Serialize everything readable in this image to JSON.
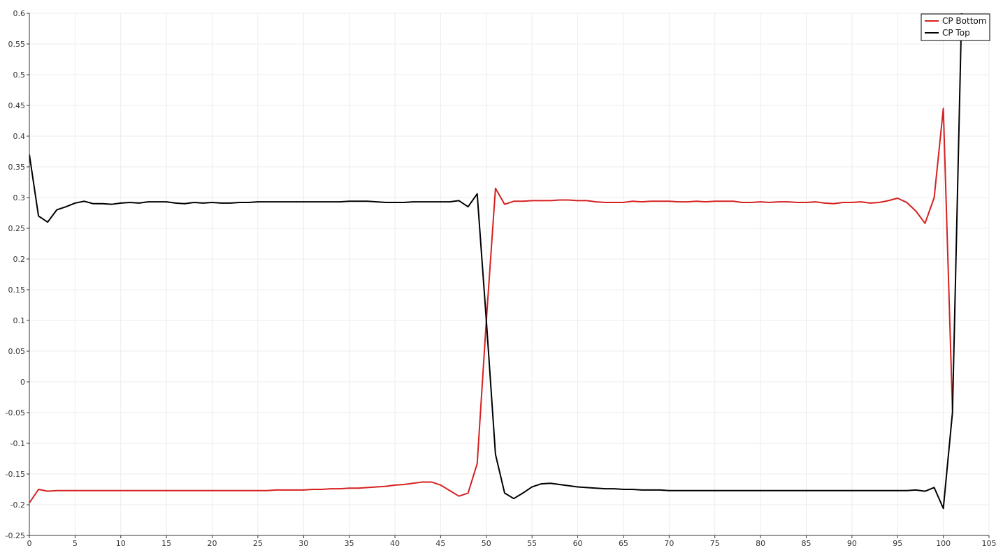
{
  "chart_data": {
    "type": "line",
    "title": "",
    "xlabel": "",
    "ylabel": "",
    "xlim": [
      0,
      105
    ],
    "ylim": [
      -0.25,
      0.6
    ],
    "xticks": [
      0,
      5,
      10,
      15,
      20,
      25,
      30,
      35,
      40,
      45,
      50,
      55,
      60,
      65,
      70,
      75,
      80,
      85,
      90,
      95,
      100,
      105
    ],
    "yticks": [
      -0.25,
      -0.2,
      -0.15,
      -0.1,
      -0.05,
      0,
      0.05,
      0.1,
      0.15,
      0.2,
      0.25,
      0.3,
      0.35,
      0.4,
      0.45,
      0.5,
      0.55,
      0.6
    ],
    "xtick_labels": [
      "0",
      "5",
      "10",
      "15",
      "20",
      "25",
      "30",
      "35",
      "40",
      "45",
      "50",
      "55",
      "60",
      "65",
      "70",
      "75",
      "80",
      "85",
      "90",
      "95",
      "100",
      "105"
    ],
    "ytick_labels": [
      "-0.25",
      "-0.2",
      "-0.15",
      "-0.1",
      "-0.05",
      "0",
      "0.05",
      "0.1",
      "0.15",
      "0.2",
      "0.25",
      "0.3",
      "0.35",
      "0.4",
      "0.45",
      "0.5",
      "0.55",
      "0.6"
    ],
    "grid": true,
    "legend": "top-right",
    "series": [
      {
        "name": "CP Bottom",
        "color": "#d62020",
        "x": [
          0,
          1,
          2,
          3,
          4,
          5,
          6,
          7,
          8,
          9,
          10,
          11,
          12,
          13,
          14,
          15,
          16,
          17,
          18,
          19,
          20,
          21,
          22,
          23,
          24,
          25,
          26,
          27,
          28,
          29,
          30,
          31,
          32,
          33,
          34,
          35,
          36,
          37,
          38,
          39,
          40,
          41,
          42,
          43,
          44,
          45,
          46,
          47,
          48,
          49,
          50,
          51,
          52,
          53,
          54,
          55,
          56,
          57,
          58,
          59,
          60,
          61,
          62,
          63,
          64,
          65,
          66,
          67,
          68,
          69,
          70,
          71,
          72,
          73,
          74,
          75,
          76,
          77,
          78,
          79,
          80,
          81,
          82,
          83,
          84,
          85,
          86,
          87,
          88,
          89,
          90,
          91,
          92,
          93,
          94,
          95,
          96,
          97,
          98,
          99,
          100,
          101
        ],
        "y": [
          -0.197,
          -0.175,
          -0.178,
          -0.177,
          -0.177,
          -0.177,
          -0.177,
          -0.177,
          -0.177,
          -0.177,
          -0.177,
          -0.177,
          -0.177,
          -0.177,
          -0.177,
          -0.177,
          -0.177,
          -0.177,
          -0.177,
          -0.177,
          -0.177,
          -0.177,
          -0.177,
          -0.177,
          -0.177,
          -0.177,
          -0.177,
          -0.176,
          -0.176,
          -0.176,
          -0.176,
          -0.175,
          -0.175,
          -0.174,
          -0.174,
          -0.173,
          -0.173,
          -0.172,
          -0.171,
          -0.17,
          -0.168,
          -0.167,
          -0.165,
          -0.163,
          -0.163,
          -0.168,
          -0.177,
          -0.186,
          -0.181,
          -0.133,
          0.1,
          0.315,
          0.289,
          0.294,
          0.294,
          0.295,
          0.295,
          0.295,
          0.296,
          0.296,
          0.295,
          0.295,
          0.293,
          0.292,
          0.292,
          0.292,
          0.294,
          0.293,
          0.294,
          0.294,
          0.294,
          0.293,
          0.293,
          0.294,
          0.293,
          0.294,
          0.294,
          0.294,
          0.292,
          0.292,
          0.293,
          0.292,
          0.293,
          0.293,
          0.292,
          0.292,
          0.293,
          0.291,
          0.29,
          0.292,
          0.292,
          0.293,
          0.291,
          0.292,
          0.295,
          0.299,
          0.292,
          0.278,
          0.258,
          0.3,
          0.445,
          -0.045
        ]
      },
      {
        "name": "CP Top",
        "color": "#000000",
        "x": [
          0,
          1,
          2,
          3,
          4,
          5,
          6,
          7,
          8,
          9,
          10,
          11,
          12,
          13,
          14,
          15,
          16,
          17,
          18,
          19,
          20,
          21,
          22,
          23,
          24,
          25,
          26,
          27,
          28,
          29,
          30,
          31,
          32,
          33,
          34,
          35,
          36,
          37,
          38,
          39,
          40,
          41,
          42,
          43,
          44,
          45,
          46,
          47,
          48,
          49,
          50,
          51,
          52,
          53,
          54,
          55,
          56,
          57,
          58,
          59,
          60,
          61,
          62,
          63,
          64,
          65,
          66,
          67,
          68,
          69,
          70,
          71,
          72,
          73,
          74,
          75,
          76,
          77,
          78,
          79,
          80,
          81,
          82,
          83,
          84,
          85,
          86,
          87,
          88,
          89,
          90,
          91,
          92,
          93,
          94,
          95,
          96,
          97,
          98,
          99,
          100,
          101,
          102
        ],
        "y": [
          0.37,
          0.27,
          0.26,
          0.28,
          0.285,
          0.291,
          0.294,
          0.29,
          0.29,
          0.289,
          0.291,
          0.292,
          0.291,
          0.293,
          0.293,
          0.293,
          0.291,
          0.29,
          0.292,
          0.291,
          0.292,
          0.291,
          0.291,
          0.292,
          0.292,
          0.293,
          0.293,
          0.293,
          0.293,
          0.293,
          0.293,
          0.293,
          0.293,
          0.293,
          0.293,
          0.294,
          0.294,
          0.294,
          0.293,
          0.292,
          0.292,
          0.292,
          0.293,
          0.293,
          0.293,
          0.293,
          0.293,
          0.295,
          0.285,
          0.306,
          0.1,
          -0.118,
          -0.181,
          -0.19,
          -0.181,
          -0.171,
          -0.166,
          -0.165,
          -0.167,
          -0.169,
          -0.171,
          -0.172,
          -0.173,
          -0.174,
          -0.174,
          -0.175,
          -0.175,
          -0.176,
          -0.176,
          -0.176,
          -0.177,
          -0.177,
          -0.177,
          -0.177,
          -0.177,
          -0.177,
          -0.177,
          -0.177,
          -0.177,
          -0.177,
          -0.177,
          -0.177,
          -0.177,
          -0.177,
          -0.177,
          -0.177,
          -0.177,
          -0.177,
          -0.177,
          -0.177,
          -0.177,
          -0.177,
          -0.177,
          -0.177,
          -0.177,
          -0.177,
          -0.177,
          -0.176,
          -0.178,
          -0.172,
          -0.206,
          -0.05,
          0.6
        ]
      }
    ]
  }
}
